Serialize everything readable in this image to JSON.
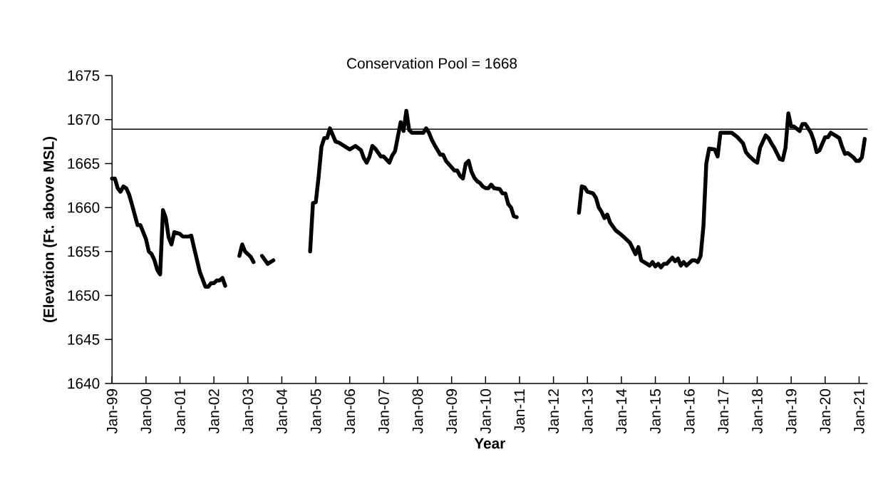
{
  "chart_data": {
    "type": "line",
    "title": "Conservation Pool = 1668",
    "xlabel": "Year",
    "ylabel": "(Elevation (Ft. above MSL)",
    "xlim": [
      "1999-01",
      "2021-04"
    ],
    "ylim": [
      1640,
      1675
    ],
    "yticks": [
      1640,
      1645,
      1650,
      1655,
      1660,
      1665,
      1670,
      1675
    ],
    "xticks": [
      {
        "value": "1999-01",
        "label": "Jan-99"
      },
      {
        "value": "2000-01",
        "label": "Jan-00"
      },
      {
        "value": "2001-01",
        "label": "Jan-01"
      },
      {
        "value": "2002-01",
        "label": "Jan-02"
      },
      {
        "value": "2003-01",
        "label": "Jan-03"
      },
      {
        "value": "2004-01",
        "label": "Jan-04"
      },
      {
        "value": "2005-01",
        "label": "Jan-05"
      },
      {
        "value": "2006-01",
        "label": "Jan-06"
      },
      {
        "value": "2007-01",
        "label": "Jan-07"
      },
      {
        "value": "2008-01",
        "label": "Jan-08"
      },
      {
        "value": "2009-01",
        "label": "Jan-09"
      },
      {
        "value": "2010-01",
        "label": "Jan-10"
      },
      {
        "value": "2011-01",
        "label": "Jan-11"
      },
      {
        "value": "2012-01",
        "label": "Jan-12"
      },
      {
        "value": "2013-01",
        "label": "Jan-13"
      },
      {
        "value": "2014-01",
        "label": "Jan-14"
      },
      {
        "value": "2015-01",
        "label": "Jan-15"
      },
      {
        "value": "2016-01",
        "label": "Jan-16"
      },
      {
        "value": "2017-01",
        "label": "Jan-17"
      },
      {
        "value": "2018-01",
        "label": "Jan-18"
      },
      {
        "value": "2019-01",
        "label": "Jan-19"
      },
      {
        "value": "2020-01",
        "label": "Jan-20"
      },
      {
        "value": "2021-01",
        "label": "Jan-21"
      }
    ],
    "ref_lines": [
      {
        "axis": "y",
        "value": 1668.9,
        "color": "#000000"
      }
    ],
    "x": [
      "1999-01",
      "1999-02",
      "1999-03",
      "1999-04",
      "1999-05",
      "1999-06",
      "1999-07",
      "1999-08",
      "1999-10",
      "1999-11",
      "2000-01",
      "2000-02",
      "2000-03",
      "2000-04",
      "2000-05",
      "2000-06",
      "2000-07",
      "2000-08",
      "2000-09",
      "2000-10",
      "2000-11",
      "2001-01",
      "2001-02",
      "2001-04",
      "2001-05",
      "2001-06",
      "2001-08",
      "2001-10",
      "2001-11",
      "2001-12",
      "2002-01",
      "2002-02",
      "2002-03",
      "2002-04",
      "2002-05",
      "2002-07",
      "2002-10",
      "2002-11",
      "2002-12",
      "2003-02",
      "2003-03",
      "2003-05",
      "2003-06",
      "2003-08",
      "2003-10",
      "2004-01",
      "2004-11",
      "2004-12",
      "2005-01",
      "2005-02",
      "2005-03",
      "2005-04",
      "2005-05",
      "2005-06",
      "2005-08",
      "2005-09",
      "2006-01",
      "2006-03",
      "2006-05",
      "2006-06",
      "2006-07",
      "2006-08",
      "2006-09",
      "2006-10",
      "2006-12",
      "2007-01",
      "2007-03",
      "2007-04",
      "2007-05",
      "2007-07",
      "2007-08",
      "2007-09",
      "2007-10",
      "2007-11",
      "2008-03",
      "2008-04",
      "2008-05",
      "2008-06",
      "2008-07",
      "2008-09",
      "2008-10",
      "2008-11",
      "2009-02",
      "2009-03",
      "2009-04",
      "2009-05",
      "2009-06",
      "2009-07",
      "2009-08",
      "2009-09",
      "2009-10",
      "2009-11",
      "2009-12",
      "2010-01",
      "2010-02",
      "2010-03",
      "2010-04",
      "2010-06",
      "2010-07",
      "2010-08",
      "2010-09",
      "2010-10",
      "2010-11",
      "2010-12",
      "2011-07",
      "2012-10",
      "2012-11",
      "2012-12",
      "2013-01",
      "2013-03",
      "2013-04",
      "2013-05",
      "2013-06",
      "2013-07",
      "2013-08",
      "2013-09",
      "2013-11",
      "2014-01",
      "2014-02",
      "2014-04",
      "2014-06",
      "2014-07",
      "2014-08",
      "2014-09",
      "2014-11",
      "2014-12",
      "2015-01",
      "2015-02",
      "2015-03",
      "2015-04",
      "2015-05",
      "2015-07",
      "2015-08",
      "2015-09",
      "2015-10",
      "2015-11",
      "2015-12",
      "2016-02",
      "2016-03",
      "2016-04",
      "2016-05",
      "2016-06",
      "2016-07",
      "2016-08",
      "2016-10",
      "2016-11",
      "2016-12",
      "2017-04",
      "2017-06",
      "2017-08",
      "2017-09",
      "2017-10",
      "2017-12",
      "2018-01",
      "2018-02",
      "2018-04",
      "2018-05",
      "2018-06",
      "2018-07",
      "2018-09",
      "2018-10",
      "2018-11",
      "2018-12",
      "2019-01",
      "2019-02",
      "2019-04",
      "2019-05",
      "2019-06",
      "2019-08",
      "2019-09",
      "2019-10",
      "2019-11",
      "2020-01",
      "2020-02",
      "2020-03",
      "2020-05",
      "2020-06",
      "2020-07",
      "2020-08",
      "2020-09",
      "2020-11",
      "2020-12",
      "2021-01",
      "2021-02",
      "2021-03"
    ],
    "series": [
      {
        "color": "#000000",
        "values": [
          1663.3,
          1663.3,
          1662.2,
          1661.8,
          1662.4,
          1662.2,
          1661.5,
          1660.4,
          1658.0,
          1658.0,
          1656.4,
          1655.0,
          1654.7,
          1654.0,
          1652.9,
          1652.4,
          1659.7,
          1658.8,
          1656.6,
          1655.8,
          1657.2,
          1657.0,
          1656.7,
          1656.7,
          1656.8,
          1655.4,
          1652.7,
          1651.0,
          1651.0,
          1651.4,
          1651.4,
          1651.7,
          1651.7,
          1652.0,
          1651.1,
          null,
          1654.5,
          1655.8,
          1655.0,
          1654.4,
          1653.8,
          null,
          1654.5,
          1653.6,
          1654.0,
          null,
          1655.0,
          1660.5,
          1660.6,
          1663.5,
          1666.9,
          1667.9,
          1667.9,
          1669.0,
          1667.5,
          1667.4,
          1666.6,
          1667.0,
          1666.5,
          1665.6,
          1665.1,
          1665.8,
          1667.0,
          1666.7,
          1665.8,
          1665.8,
          1665.1,
          1665.9,
          1666.4,
          1669.7,
          1668.7,
          1671.0,
          1668.8,
          1668.5,
          1668.5,
          1669.0,
          1668.5,
          1667.7,
          1667.1,
          1666.0,
          1666.0,
          1665.3,
          1664.2,
          1664.2,
          1663.6,
          1663.3,
          1665.0,
          1665.3,
          1664.1,
          1663.4,
          1663.0,
          1662.8,
          1662.4,
          1662.2,
          1662.2,
          1662.6,
          1662.2,
          1662.1,
          1661.6,
          1661.6,
          1660.4,
          1660.0,
          1659.0,
          1658.9,
          null,
          1659.4,
          1662.4,
          1662.3,
          1661.8,
          1661.6,
          1661.1,
          1660.0,
          1659.5,
          1658.8,
          1659.2,
          1658.3,
          1657.4,
          1656.9,
          1656.6,
          1656.0,
          1654.7,
          1655.5,
          1654.0,
          1653.8,
          1653.4,
          1653.8,
          1653.3,
          1653.6,
          1653.2,
          1653.6,
          1653.6,
          1654.3,
          1653.9,
          1654.2,
          1653.4,
          1653.8,
          1653.4,
          1654.0,
          1654.0,
          1653.8,
          1654.5,
          1657.9,
          1665.0,
          1666.7,
          1666.6,
          1665.8,
          1668.5,
          1668.5,
          1668.0,
          1667.3,
          1666.3,
          1665.9,
          1665.3,
          1665.1,
          1666.8,
          1668.2,
          1667.9,
          1667.3,
          1666.8,
          1665.5,
          1665.4,
          1666.8,
          1670.7,
          1669.2,
          1669.2,
          1668.7,
          1669.5,
          1669.5,
          1668.5,
          1667.6,
          1666.3,
          1666.5,
          1668.0,
          1668.0,
          1668.5,
          1668.1,
          1667.9,
          1666.9,
          1666.1,
          1666.2,
          1665.7,
          1665.3,
          1665.3,
          1665.7,
          1667.8
        ]
      }
    ]
  }
}
